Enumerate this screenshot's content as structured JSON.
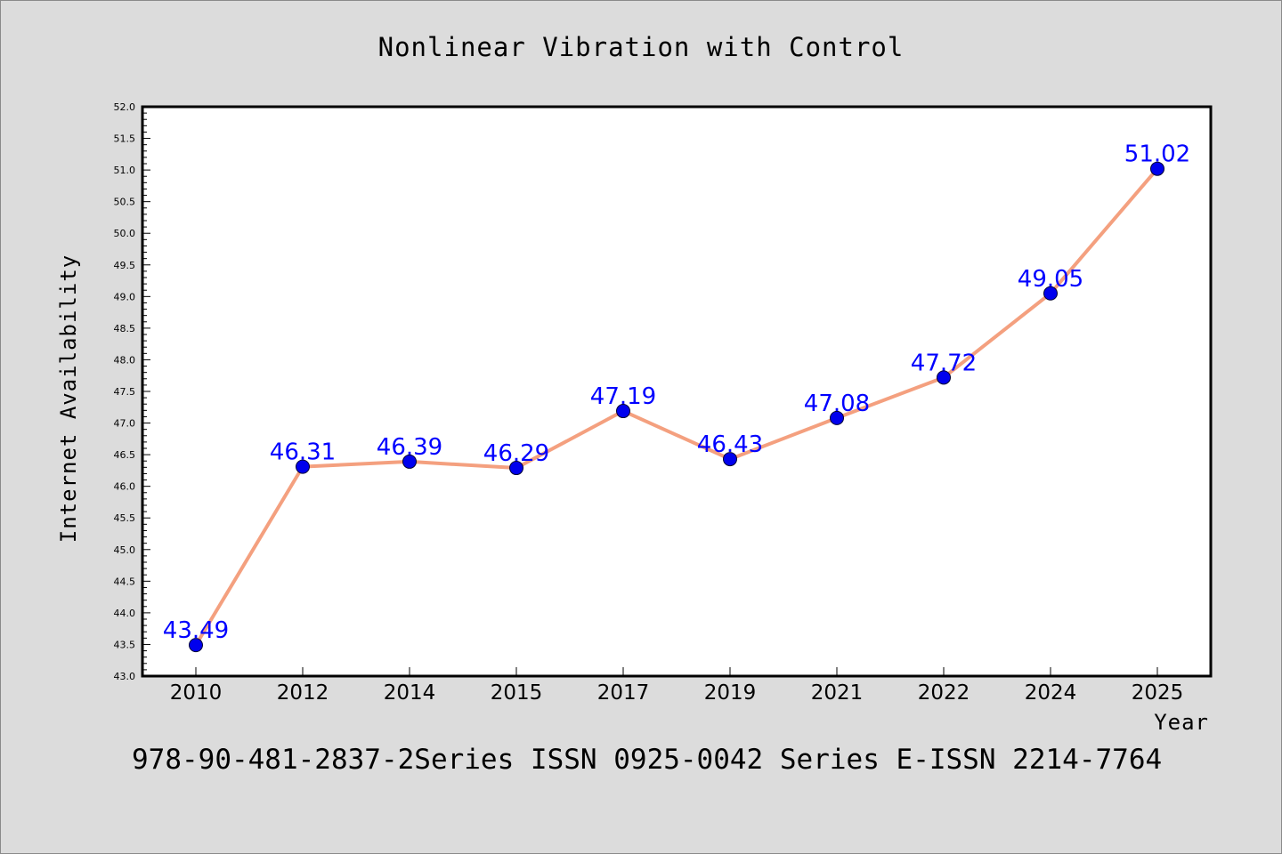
{
  "colors": {
    "background": "#dcdcdc",
    "plot_background": "#ffffff",
    "line": "#f4a07f",
    "marker": "#0000ee",
    "data_label": "#0000ff"
  },
  "footer_text": "978-90-481-2837-2Series ISSN 0925-0042 Series E-ISSN 2214-7764",
  "chart_data": {
    "type": "line",
    "title": "Nonlinear Vibration with Control",
    "xlabel": "Year",
    "ylabel": "Internet Availability",
    "categories": [
      "2010",
      "2012",
      "2014",
      "2015",
      "2017",
      "2019",
      "2021",
      "2022",
      "2024",
      "2025"
    ],
    "series": [
      {
        "values": [
          43.49,
          46.31,
          46.39,
          46.29,
          47.19,
          46.43,
          47.08,
          47.72,
          49.05,
          51.02
        ],
        "data_labels": [
          "43.49",
          "46.31",
          "46.39",
          "46.29",
          "47.19",
          "46.43",
          "47.08",
          "47.72",
          "49.05",
          "51.02"
        ]
      }
    ],
    "ylim": [
      43.0,
      52.0
    ],
    "yticks": [
      43.0,
      43.5,
      44.0,
      44.5,
      45.0,
      45.5,
      46.0,
      46.5,
      47.0,
      47.5,
      48.0,
      48.5,
      49.0,
      49.5,
      50.0,
      50.5,
      51.0,
      51.5,
      52.0
    ],
    "ytick_labels": [
      "43.0",
      "43.5",
      "44.0",
      "44.5",
      "45.0",
      "45.5",
      "46.0",
      "46.5",
      "47.0",
      "47.5",
      "48.0",
      "48.5",
      "49.0",
      "49.5",
      "50.0",
      "50.5",
      "51.0",
      "51.5",
      "52.0"
    ],
    "y_minor_ticks_per_major": 4,
    "grid": false,
    "legend": "none"
  }
}
